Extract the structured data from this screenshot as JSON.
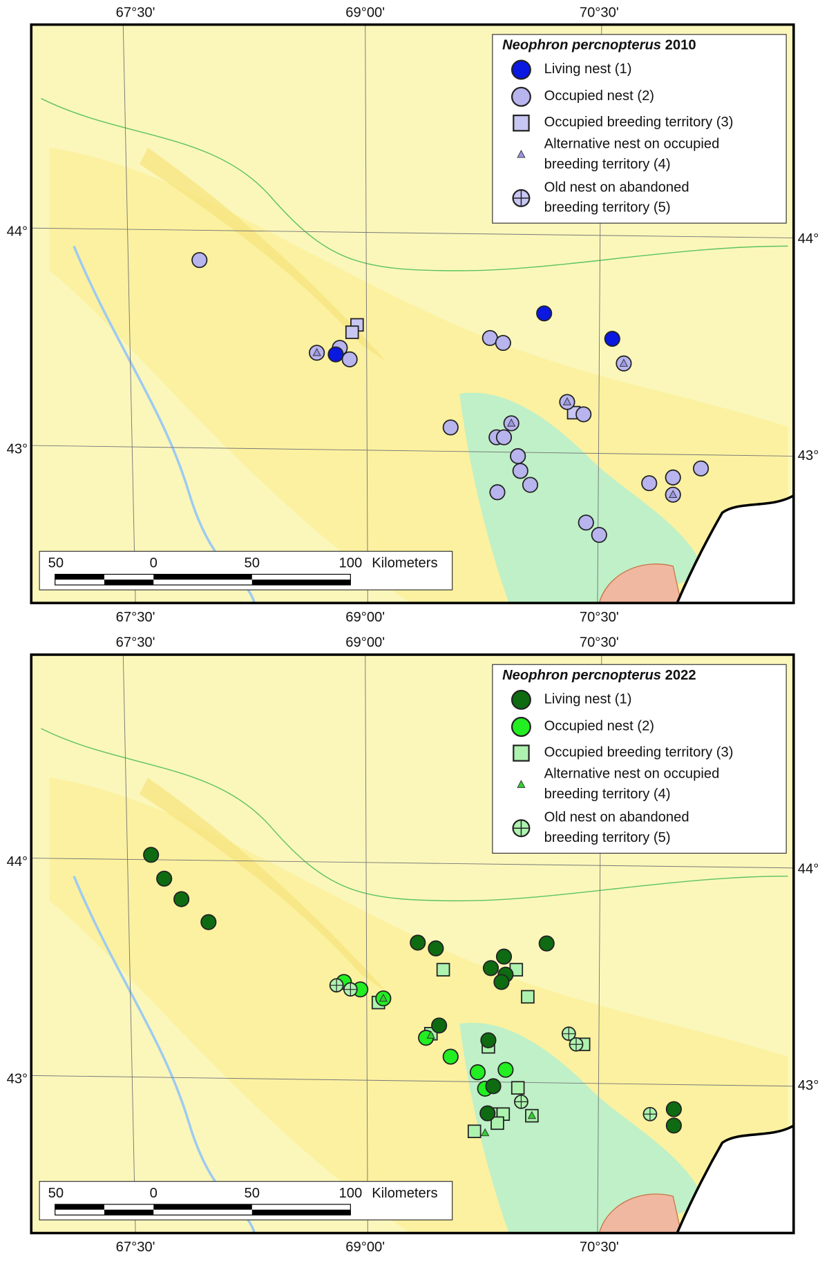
{
  "maps": [
    {
      "title_species": "Neophron percnopterus",
      "title_year": "2010",
      "legend": [
        {
          "label": "Living nest",
          "code": "(1)"
        },
        {
          "label": "Occupied nest",
          "code": "(2)"
        },
        {
          "label": "Occupied breeding territory",
          "code": "(3)"
        },
        {
          "label": "Alternative nest on occupied",
          "label2": "breeding territory",
          "code": "(4)"
        },
        {
          "label": "Old nest on abandoned",
          "label2": "breeding territory",
          "code": "(5)"
        }
      ],
      "top_labels": [
        "67°30'",
        "69°00'",
        "70°30'"
      ],
      "bottom_labels": [
        "67°30'",
        "69°00'",
        "70°30'"
      ],
      "left_labels": [
        "44°",
        "43°"
      ],
      "right_labels": [
        "44°",
        "43°"
      ],
      "scale_bar": {
        "labels": [
          "50",
          "0",
          "50",
          "100"
        ],
        "unit": "Kilometers"
      }
    },
    {
      "title_species": "Neophron percnopterus",
      "title_year": "2022",
      "legend": [
        {
          "label": "Living nest",
          "code": "(1)"
        },
        {
          "label": "Occupied nest",
          "code": "(2)"
        },
        {
          "label": "Occupied breeding territory",
          "code": "(3)"
        },
        {
          "label": "Alternative nest on occupied",
          "label2": "breeding territory",
          "code": "(4)"
        },
        {
          "label": "Old nest on abandoned",
          "label2": "breeding territory",
          "code": "(5)"
        }
      ],
      "top_labels": [
        "67°30'",
        "69°00'",
        "70°30'"
      ],
      "bottom_labels": [
        "67°30'",
        "69°00'",
        "70°30'"
      ],
      "left_labels": [
        "44°",
        "43°"
      ],
      "right_labels": [
        "44°",
        "43°"
      ],
      "scale_bar": {
        "labels": [
          "50",
          "0",
          "50",
          "100"
        ],
        "unit": "Kilometers"
      }
    }
  ]
}
